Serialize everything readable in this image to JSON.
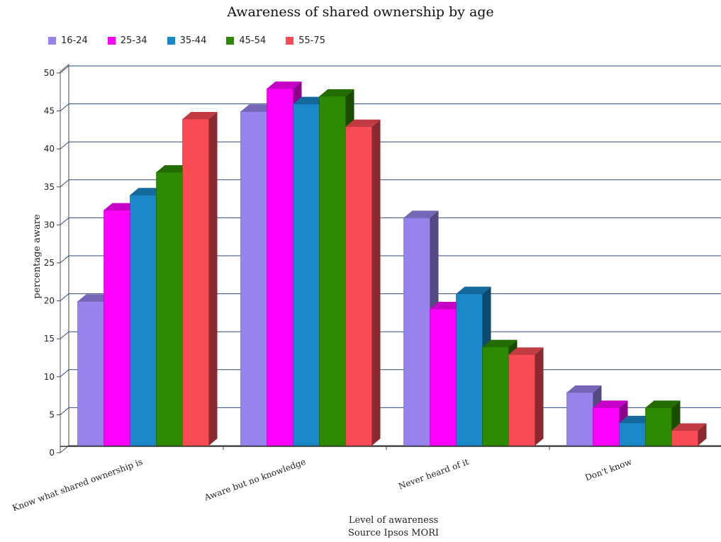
{
  "chart_data": {
    "type": "bar",
    "title": "Awareness of shared ownership by age",
    "xlabel": "Level of awareness",
    "ylabel": "percentage aware",
    "source": "Source Ipsos MORI",
    "ylim": [
      0,
      50
    ],
    "yticks": [
      "0",
      "5",
      "10",
      "15",
      "20",
      "25",
      "30",
      "35",
      "40",
      "45",
      "50"
    ],
    "categories": [
      "Know what shared ownership is",
      "Aware but no knowledge",
      "Never heard of it",
      "Don't know"
    ],
    "series": [
      {
        "name": "16-24",
        "color": "#9683ec",
        "values": [
          19,
          44,
          30,
          7
        ]
      },
      {
        "name": "25-34",
        "color": "#ff00ff",
        "values": [
          31,
          47,
          18,
          5
        ]
      },
      {
        "name": "35-44",
        "color": "#1a87c9",
        "values": [
          33,
          45,
          20,
          3
        ]
      },
      {
        "name": "45-54",
        "color": "#2d8a00",
        "values": [
          36,
          46,
          13,
          5
        ]
      },
      {
        "name": "55-75",
        "color": "#fa4b55",
        "values": [
          43,
          42,
          12,
          2
        ]
      }
    ],
    "legend_position": "top-left",
    "grid": true,
    "style": "3d"
  }
}
